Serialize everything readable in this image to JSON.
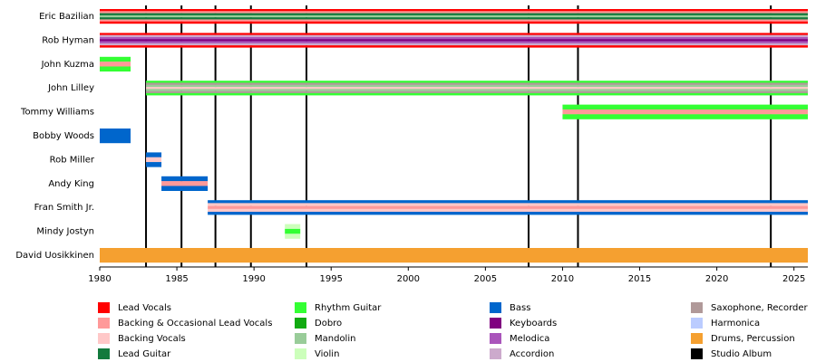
{
  "chart_data": {
    "type": "timeline",
    "xlim": [
      1980,
      2025.9
    ],
    "xticks": [
      1980,
      1985,
      1990,
      1995,
      2000,
      2005,
      2010,
      2015,
      2020,
      2025
    ],
    "members": [
      {
        "name": "Eric Bazilian",
        "start": 1980,
        "end": 2025.9,
        "colors": [
          "#ff0000",
          "#ff9999",
          "#137a3d",
          "#99cc99",
          "#137a3d",
          "#ff9999",
          "#ff0000"
        ]
      },
      {
        "name": "Rob Hyman",
        "start": 1980,
        "end": 2025.9,
        "colors": [
          "#ff0000",
          "#ccaacc",
          "#aa55bb",
          "#800080",
          "#aa55bb",
          "#ccaacc",
          "#ff0000"
        ]
      },
      {
        "name": "John Kuzma",
        "start": 1980,
        "end": 1982,
        "colors": [
          "#33ff33",
          "#ff9999",
          "#33ff33"
        ]
      },
      {
        "name": "John Lilley",
        "start": 1983,
        "end": 2025.9,
        "colors": [
          "#33ff33",
          "#b09999",
          "#99cc99",
          "#ffc8c8",
          "#99cc99",
          "#b09999",
          "#33ff33"
        ]
      },
      {
        "name": "Tommy Williams",
        "start": 2010,
        "end": 2025.9,
        "colors": [
          "#33ff33",
          "#ff9999",
          "#33ff33"
        ]
      },
      {
        "name": "Bobby Woods",
        "start": 1980,
        "end": 1982,
        "colors": [
          "#0066cc"
        ]
      },
      {
        "name": "Rob Miller",
        "start": 1983,
        "end": 1984,
        "colors": [
          "#0066cc",
          "#ffc8c8",
          "#0066cc"
        ]
      },
      {
        "name": "Andy King",
        "start": 1984,
        "end": 1987,
        "colors": [
          "#0066cc",
          "#ff9999",
          "#0066cc"
        ]
      },
      {
        "name": "Fran Smith Jr.",
        "start": 1987,
        "end": 2025.9,
        "colors": [
          "#0066cc",
          "#ffc8c8",
          "#ff9999",
          "#ffc8c8",
          "#0066cc"
        ]
      },
      {
        "name": "Mindy Jostyn",
        "start": 1992,
        "end": 1993,
        "colors": [
          "#ccffbb",
          "#33ff33",
          "#ccffbb"
        ]
      },
      {
        "name": "David Uosikkinen",
        "start": 1980,
        "end": 2025.9,
        "colors": [
          "#f5a030"
        ]
      }
    ],
    "albums": [
      1983,
      1985.3,
      1987.5,
      1989.8,
      1993.4,
      2007.8,
      2011,
      2023.5
    ],
    "legend": [
      {
        "name": "Lead Vocals",
        "color": "#ff0000"
      },
      {
        "name": "Backing & Occasional Lead Vocals",
        "color": "#ff9999"
      },
      {
        "name": "Backing Vocals",
        "color": "#ffc8c8"
      },
      {
        "name": "Lead Guitar",
        "color": "#137a3d"
      },
      {
        "name": "Rhythm Guitar",
        "color": "#33ff33"
      },
      {
        "name": "Dobro",
        "color": "#11aa11"
      },
      {
        "name": "Mandolin",
        "color": "#99cc99"
      },
      {
        "name": "Violin",
        "color": "#ccffbb"
      },
      {
        "name": "Bass",
        "color": "#0066cc"
      },
      {
        "name": "Keyboards",
        "color": "#800080"
      },
      {
        "name": "Melodica",
        "color": "#aa55bb"
      },
      {
        "name": "Accordion",
        "color": "#ccaacc"
      },
      {
        "name": "Saxophone, Recorder",
        "color": "#b09999"
      },
      {
        "name": "Harmonica",
        "color": "#bbccff"
      },
      {
        "name": "Drums, Percussion",
        "color": "#f5a030"
      },
      {
        "name": "Studio Album",
        "color": "#000000"
      }
    ]
  }
}
